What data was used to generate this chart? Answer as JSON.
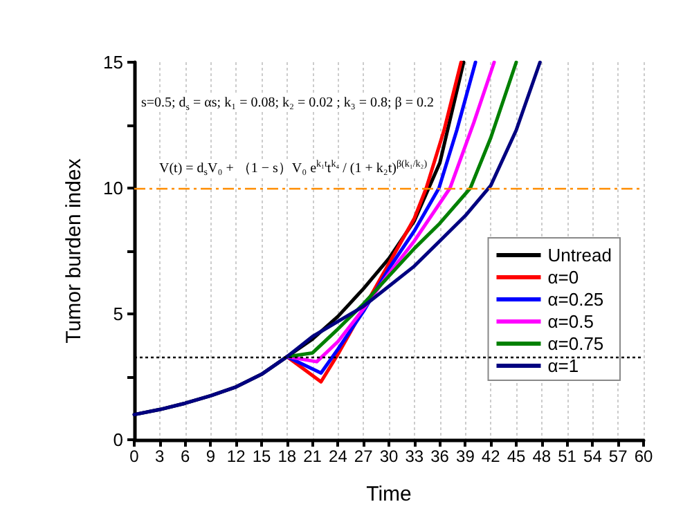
{
  "chart_data": {
    "type": "line",
    "xlabel": "Time",
    "ylabel": "Tumor burden index",
    "annotations": [
      "s=0.5; d$_{s}$ = αs; k₁ = 0.08; k₂ = 0.02 ; k₃ = 0.8; β = 0.2",
      "V(t) = d$_{s}$V₀ + （1 − s）V₀ e$^{k₁t}$t$^{k₄}$ / (1 + k₂t)$^{β(k₁/k₂)}$"
    ],
    "series": [
      {
        "name": "Untread",
        "color": "#000000",
        "x": [
          0,
          3,
          6,
          9,
          12,
          15,
          18,
          21,
          24,
          27,
          30,
          33,
          36,
          38.8
        ],
        "values": [
          1.0,
          1.2,
          1.45,
          1.75,
          2.1,
          2.6,
          3.3,
          4.0,
          4.9,
          6.0,
          7.2,
          8.7,
          11.0,
          15
        ]
      },
      {
        "name": "α=0",
        "color": "#ff0000",
        "x": [
          18,
          22,
          24,
          26,
          30,
          33,
          34.4,
          36.5,
          38.5
        ],
        "values": [
          3.3,
          2.3,
          3.4,
          4.6,
          7.0,
          8.8,
          10,
          12.3,
          15
        ]
      },
      {
        "name": "α=0.25",
        "color": "#0000ff",
        "x": [
          18,
          22,
          24,
          27,
          30,
          33,
          35.9,
          38,
          40.2
        ],
        "values": [
          3.3,
          2.65,
          3.6,
          5.1,
          6.8,
          8.3,
          10,
          12.3,
          15
        ]
      },
      {
        "name": "α=0.5",
        "color": "#ff00ff",
        "x": [
          18,
          21.5,
          24,
          27,
          30,
          33,
          37.2,
          40,
          42.4
        ],
        "values": [
          3.3,
          3.1,
          3.9,
          5.2,
          6.6,
          7.9,
          10,
          12.6,
          15
        ]
      },
      {
        "name": "α=0.75",
        "color": "#008000",
        "x": [
          18,
          21,
          24,
          27,
          30,
          33,
          36,
          39.6,
          42,
          45
        ],
        "values": [
          3.3,
          3.45,
          4.4,
          5.4,
          6.5,
          7.6,
          8.6,
          10,
          12,
          15
        ]
      },
      {
        "name": "α=1",
        "color": "#000080",
        "x": [
          0,
          3,
          6,
          9,
          12,
          15,
          18,
          21,
          24,
          27,
          30,
          33,
          36,
          39,
          42,
          45,
          47.8
        ],
        "values": [
          1.0,
          1.2,
          1.45,
          1.75,
          2.1,
          2.6,
          3.3,
          4.1,
          4.7,
          5.3,
          6.1,
          6.9,
          7.9,
          8.9,
          10.1,
          12.3,
          15
        ]
      }
    ],
    "xlim": [
      0,
      60
    ],
    "xticks": [
      0,
      3,
      6,
      9,
      12,
      15,
      18,
      21,
      24,
      27,
      30,
      33,
      36,
      39,
      42,
      45,
      48,
      51,
      54,
      57,
      60
    ],
    "ylim": [
      0,
      15
    ],
    "yticks": [
      0,
      {
        "value": 2.5,
        "label": null
      },
      5,
      {
        "value": 7.5,
        "label": null
      },
      10,
      {
        "value": 12.5,
        "label": null
      },
      15
    ],
    "ref_lines": [
      {
        "axis": "y",
        "value": 10,
        "color": "#ff8c00",
        "line_style": "dashed"
      },
      {
        "axis": "y",
        "value": 3.3,
        "color": "#000000",
        "line_style": "dotted"
      }
    ],
    "grid": "x",
    "legend": "right",
    "marker": "none",
    "line_style": "solid"
  }
}
